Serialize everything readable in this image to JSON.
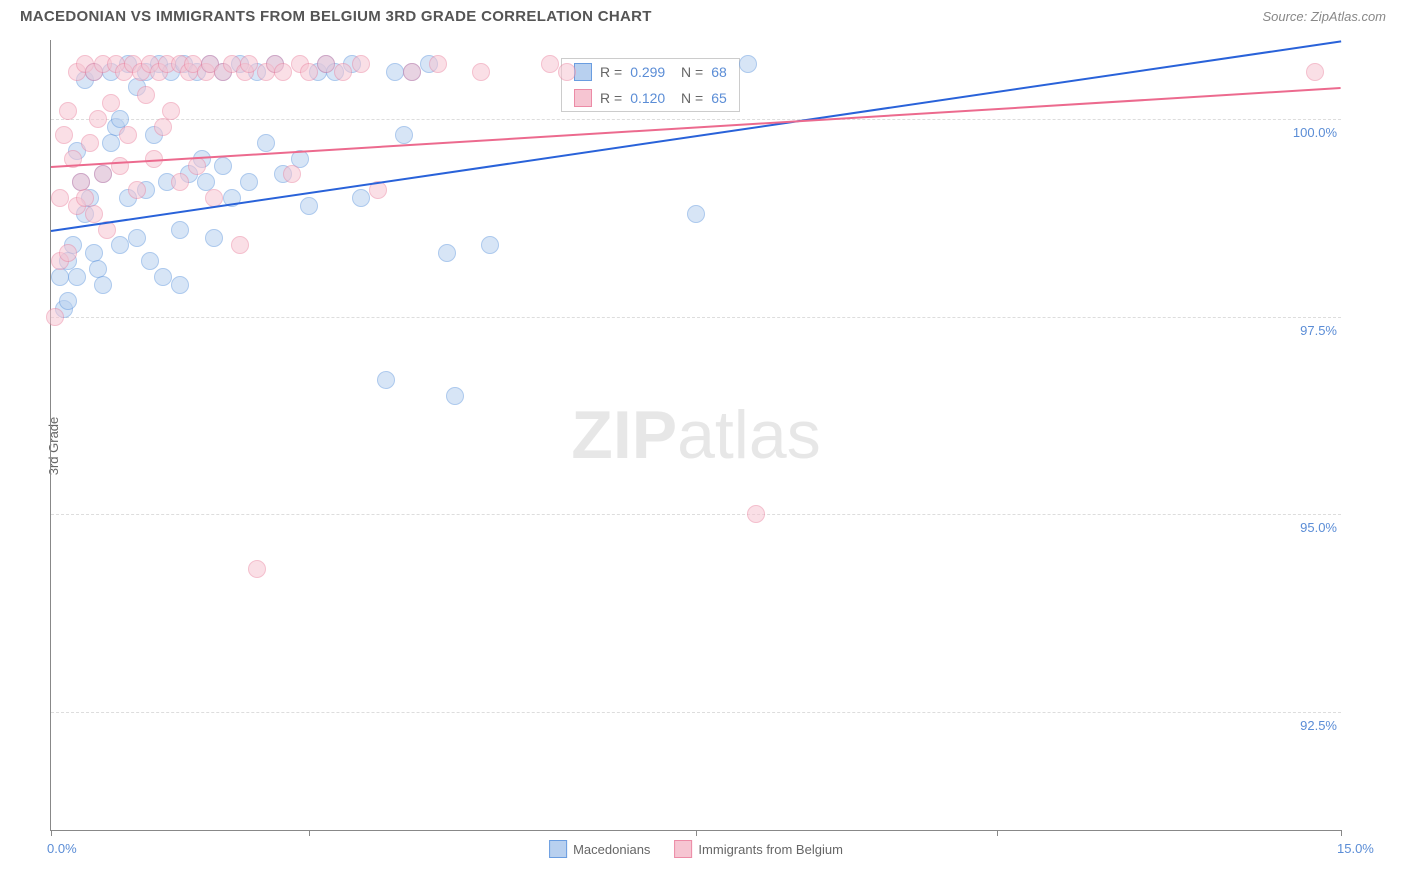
{
  "header": {
    "title": "MACEDONIAN VS IMMIGRANTS FROM BELGIUM 3RD GRADE CORRELATION CHART",
    "source": "Source: ZipAtlas.com"
  },
  "chart": {
    "type": "scatter",
    "ylabel": "3rd Grade",
    "xlim": [
      0.0,
      15.0
    ],
    "ylim": [
      91.0,
      101.0
    ],
    "yticks": [
      {
        "val": 92.5,
        "label": "92.5%"
      },
      {
        "val": 95.0,
        "label": "95.0%"
      },
      {
        "val": 97.5,
        "label": "97.5%"
      },
      {
        "val": 100.0,
        "label": "100.0%"
      }
    ],
    "xticks": [
      {
        "val": 0.0,
        "label": "0.0%"
      },
      {
        "val": 3.0,
        "label": ""
      },
      {
        "val": 7.5,
        "label": ""
      },
      {
        "val": 11.0,
        "label": ""
      },
      {
        "val": 15.0,
        "label": "15.0%"
      }
    ],
    "background_color": "#ffffff",
    "grid_color": "#dddddd",
    "axis_color": "#888888",
    "marker_radius": 8,
    "marker_opacity": 0.55,
    "series": [
      {
        "name": "Macedonians",
        "fill": "#b8d0ef",
        "stroke": "#6a9de0",
        "trend": {
          "color": "#2962d9",
          "x1": 0.0,
          "y1": 98.6,
          "x2": 15.0,
          "y2": 101.0
        },
        "R": "0.299",
        "N": "68",
        "points": [
          [
            0.1,
            98.0
          ],
          [
            0.15,
            97.6
          ],
          [
            0.2,
            98.2
          ],
          [
            0.2,
            97.7
          ],
          [
            0.25,
            98.4
          ],
          [
            0.3,
            99.6
          ],
          [
            0.3,
            98.0
          ],
          [
            0.35,
            99.2
          ],
          [
            0.4,
            98.8
          ],
          [
            0.4,
            100.5
          ],
          [
            0.45,
            99.0
          ],
          [
            0.5,
            98.3
          ],
          [
            0.5,
            100.6
          ],
          [
            0.55,
            98.1
          ],
          [
            0.6,
            99.3
          ],
          [
            0.6,
            97.9
          ],
          [
            0.7,
            99.7
          ],
          [
            0.7,
            100.6
          ],
          [
            0.75,
            99.9
          ],
          [
            0.8,
            100.0
          ],
          [
            0.8,
            98.4
          ],
          [
            0.9,
            100.7
          ],
          [
            0.9,
            99.0
          ],
          [
            1.0,
            100.4
          ],
          [
            1.0,
            98.5
          ],
          [
            1.1,
            99.1
          ],
          [
            1.1,
            100.6
          ],
          [
            1.15,
            98.2
          ],
          [
            1.2,
            99.8
          ],
          [
            1.25,
            100.7
          ],
          [
            1.3,
            98.0
          ],
          [
            1.35,
            99.2
          ],
          [
            1.4,
            100.6
          ],
          [
            1.5,
            98.6
          ],
          [
            1.5,
            97.9
          ],
          [
            1.55,
            100.7
          ],
          [
            1.6,
            99.3
          ],
          [
            1.7,
            100.6
          ],
          [
            1.75,
            99.5
          ],
          [
            1.8,
            99.2
          ],
          [
            1.85,
            100.7
          ],
          [
            1.9,
            98.5
          ],
          [
            2.0,
            99.4
          ],
          [
            2.0,
            100.6
          ],
          [
            2.1,
            99.0
          ],
          [
            2.2,
            100.7
          ],
          [
            2.3,
            99.2
          ],
          [
            2.4,
            100.6
          ],
          [
            2.5,
            99.7
          ],
          [
            2.6,
            100.7
          ],
          [
            2.7,
            99.3
          ],
          [
            2.9,
            99.5
          ],
          [
            3.0,
            98.9
          ],
          [
            3.1,
            100.6
          ],
          [
            3.2,
            100.7
          ],
          [
            3.3,
            100.6
          ],
          [
            3.5,
            100.7
          ],
          [
            3.6,
            99.0
          ],
          [
            3.9,
            96.7
          ],
          [
            4.0,
            100.6
          ],
          [
            4.1,
            99.8
          ],
          [
            4.2,
            100.6
          ],
          [
            4.4,
            100.7
          ],
          [
            4.6,
            98.3
          ],
          [
            4.7,
            96.5
          ],
          [
            5.1,
            98.4
          ],
          [
            7.5,
            98.8
          ],
          [
            8.1,
            100.7
          ]
        ]
      },
      {
        "name": "Immigrants from Belgium",
        "fill": "#f6c5d2",
        "stroke": "#ec8ba6",
        "trend": {
          "color": "#ec6a8e",
          "x1": 0.0,
          "y1": 99.4,
          "x2": 15.0,
          "y2": 100.4
        },
        "R": "0.120",
        "N": "65",
        "points": [
          [
            0.05,
            97.5
          ],
          [
            0.1,
            98.2
          ],
          [
            0.1,
            99.0
          ],
          [
            0.15,
            99.8
          ],
          [
            0.2,
            100.1
          ],
          [
            0.2,
            98.3
          ],
          [
            0.25,
            99.5
          ],
          [
            0.3,
            100.6
          ],
          [
            0.3,
            98.9
          ],
          [
            0.35,
            99.2
          ],
          [
            0.4,
            100.7
          ],
          [
            0.4,
            99.0
          ],
          [
            0.45,
            99.7
          ],
          [
            0.5,
            100.6
          ],
          [
            0.5,
            98.8
          ],
          [
            0.55,
            100.0
          ],
          [
            0.6,
            99.3
          ],
          [
            0.6,
            100.7
          ],
          [
            0.65,
            98.6
          ],
          [
            0.7,
            100.2
          ],
          [
            0.75,
            100.7
          ],
          [
            0.8,
            99.4
          ],
          [
            0.85,
            100.6
          ],
          [
            0.9,
            99.8
          ],
          [
            0.95,
            100.7
          ],
          [
            1.0,
            99.1
          ],
          [
            1.05,
            100.6
          ],
          [
            1.1,
            100.3
          ],
          [
            1.15,
            100.7
          ],
          [
            1.2,
            99.5
          ],
          [
            1.25,
            100.6
          ],
          [
            1.3,
            99.9
          ],
          [
            1.35,
            100.7
          ],
          [
            1.4,
            100.1
          ],
          [
            1.5,
            99.2
          ],
          [
            1.5,
            100.7
          ],
          [
            1.6,
            100.6
          ],
          [
            1.65,
            100.7
          ],
          [
            1.7,
            99.4
          ],
          [
            1.8,
            100.6
          ],
          [
            1.85,
            100.7
          ],
          [
            1.9,
            99.0
          ],
          [
            2.0,
            100.6
          ],
          [
            2.1,
            100.7
          ],
          [
            2.2,
            98.4
          ],
          [
            2.25,
            100.6
          ],
          [
            2.3,
            100.7
          ],
          [
            2.4,
            94.3
          ],
          [
            2.5,
            100.6
          ],
          [
            2.6,
            100.7
          ],
          [
            2.7,
            100.6
          ],
          [
            2.8,
            99.3
          ],
          [
            2.9,
            100.7
          ],
          [
            3.0,
            100.6
          ],
          [
            3.2,
            100.7
          ],
          [
            3.4,
            100.6
          ],
          [
            3.6,
            100.7
          ],
          [
            3.8,
            99.1
          ],
          [
            4.2,
            100.6
          ],
          [
            4.5,
            100.7
          ],
          [
            5.0,
            100.6
          ],
          [
            5.8,
            100.7
          ],
          [
            6.0,
            100.6
          ],
          [
            8.2,
            95.0
          ],
          [
            14.7,
            100.6
          ]
        ]
      }
    ],
    "legend_bottom": [
      {
        "label": "Macedonians",
        "fill": "#b8d0ef",
        "stroke": "#6a9de0"
      },
      {
        "label": "Immigrants from Belgium",
        "fill": "#f6c5d2",
        "stroke": "#ec8ba6"
      }
    ],
    "watermark": {
      "zip": "ZIP",
      "atlas": "atlas"
    }
  }
}
